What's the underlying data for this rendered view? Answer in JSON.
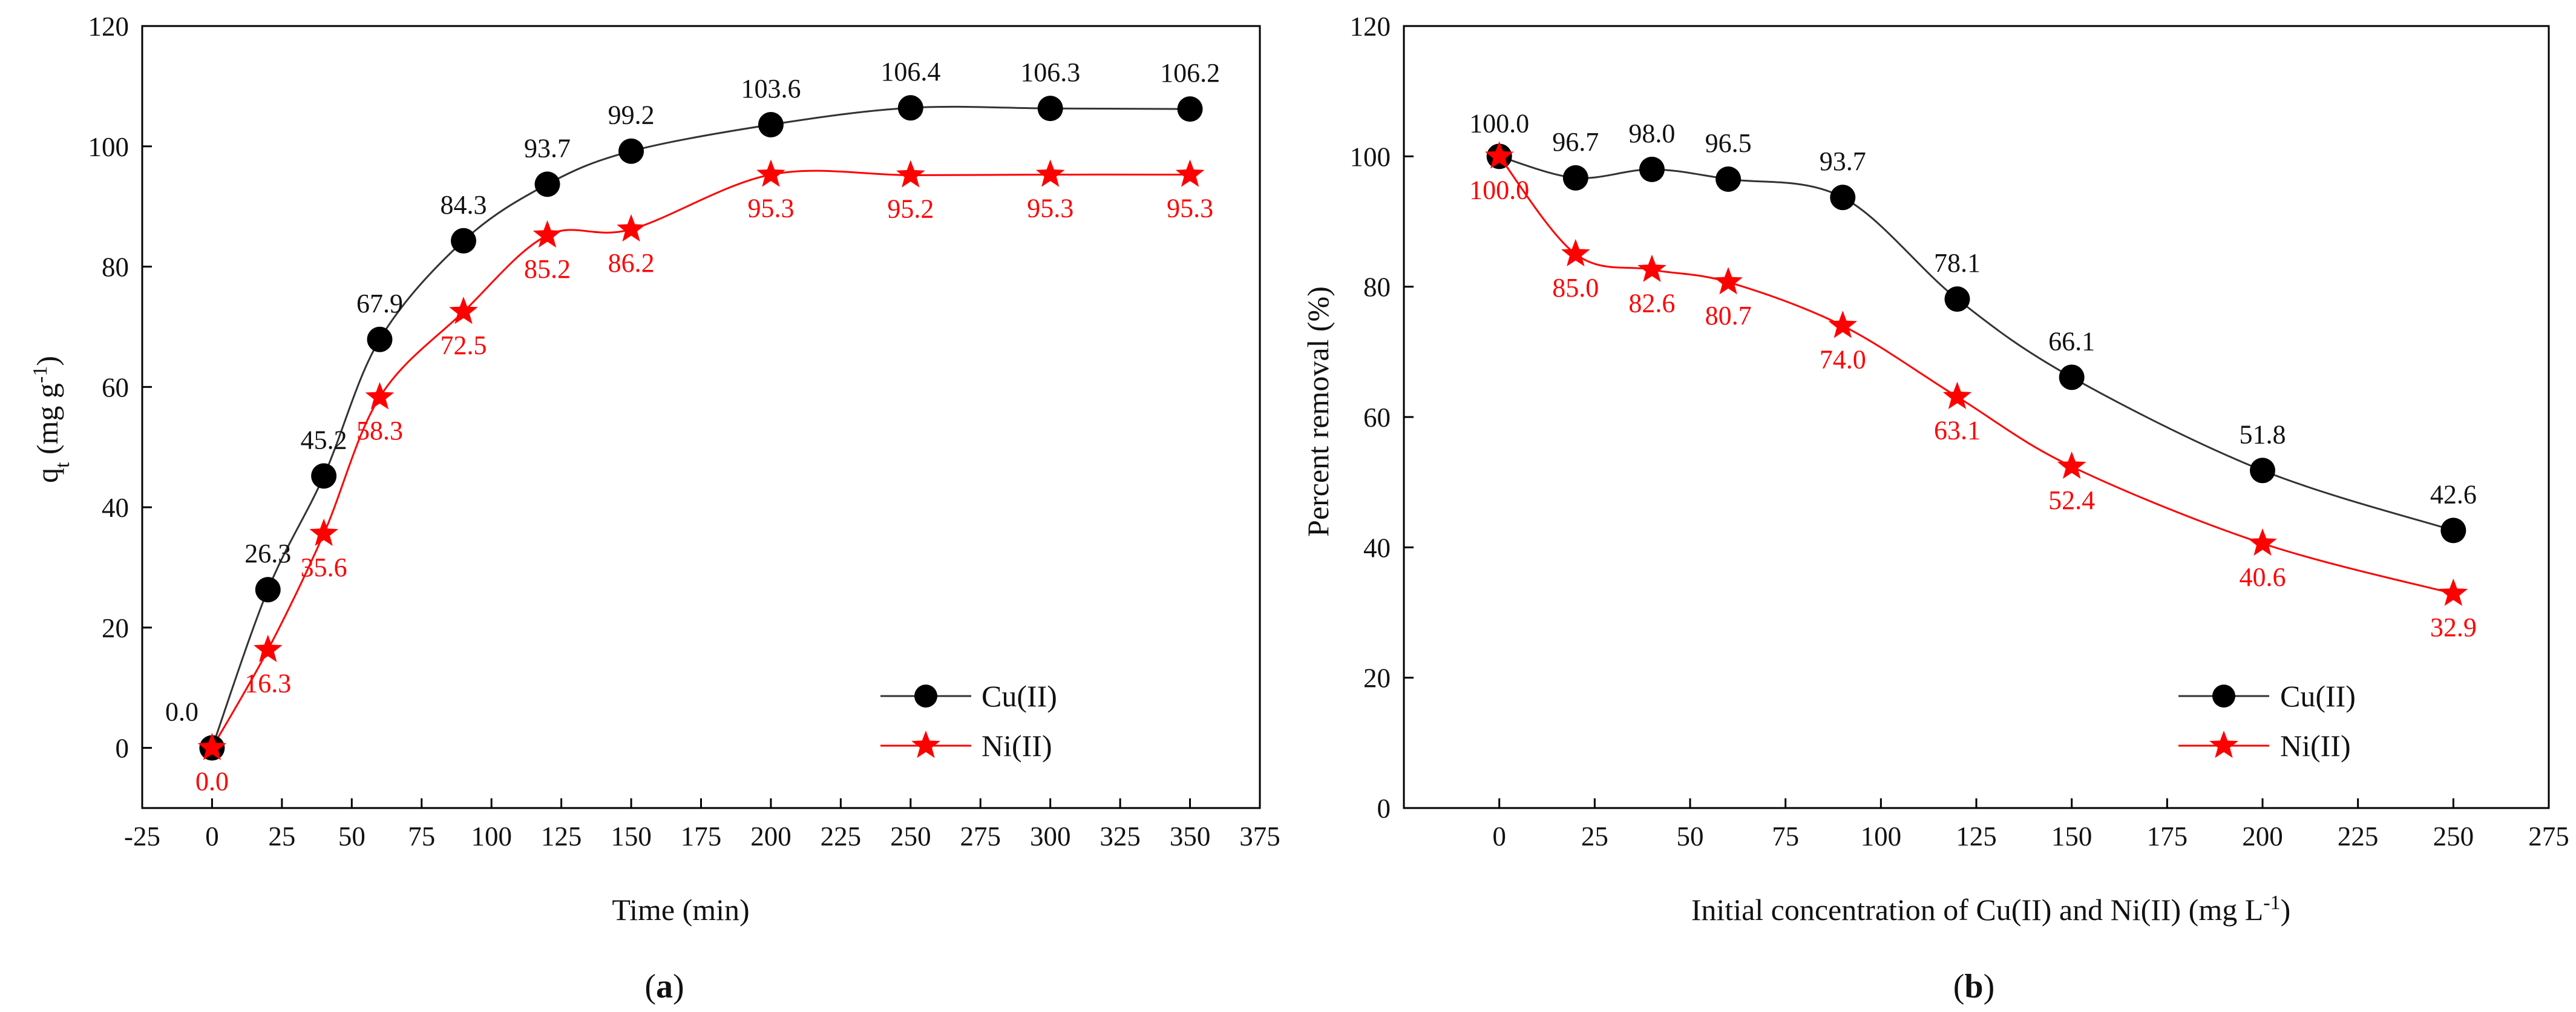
{
  "colors": {
    "cu": "#000000",
    "ni": "#ff0000",
    "axis": "#000000"
  },
  "chart_data": [
    {
      "type": "line",
      "panel_label_prefix": "(",
      "panel_label_letter": "a",
      "panel_label_suffix": ")",
      "xlabel": "Time (min)",
      "ylabel_main": "q",
      "ylabel_sub": "t",
      "ylabel_rest": " (mg g",
      "ylabel_sup": "-1",
      "ylabel_close": ")",
      "xlim": [
        -25,
        375
      ],
      "ylim": [
        -10,
        120
      ],
      "xticks": [
        "-25",
        "0",
        "25",
        "50",
        "75",
        "100",
        "125",
        "150",
        "175",
        "200",
        "225",
        "250",
        "275",
        "300",
        "325",
        "350",
        "375"
      ],
      "yticks": [
        "0",
        "20",
        "40",
        "60",
        "80",
        "100",
        "120"
      ],
      "legend_position": "bottom-right",
      "series": [
        {
          "name": "Cu(II)",
          "marker": "circle",
          "x": [
            0,
            20,
            40,
            60,
            90,
            120,
            150,
            200,
            250,
            300,
            350
          ],
          "y": [
            0.0,
            26.3,
            45.2,
            67.9,
            84.3,
            93.7,
            99.2,
            103.6,
            106.4,
            106.3,
            106.2
          ],
          "labels": [
            "0.0",
            "26.3",
            "45.2",
            "67.9",
            "84.3",
            "93.7",
            "99.2",
            "103.6",
            "106.4",
            "106.3",
            "106.2"
          ]
        },
        {
          "name": "Ni(II)",
          "marker": "star",
          "x": [
            0,
            20,
            40,
            60,
            90,
            120,
            150,
            200,
            250,
            300,
            350
          ],
          "y": [
            0.0,
            16.3,
            35.6,
            58.3,
            72.5,
            85.2,
            86.2,
            95.3,
            95.2,
            95.3,
            95.3
          ],
          "labels": [
            "0.0",
            "16.3",
            "35.6",
            "58.3",
            "72.5",
            "85.2",
            "86.2",
            "95.3",
            "95.2",
            "95.3",
            "95.3"
          ]
        }
      ]
    },
    {
      "type": "line",
      "panel_label_prefix": "(",
      "panel_label_letter": "b",
      "panel_label_suffix": ")",
      "xlabel_main": "Initial concentration of Cu(II) and Ni(II) (mg L",
      "xlabel_sup": "-1",
      "xlabel_close": ")",
      "ylabel": "Percent removal (%)",
      "xlim": [
        -25,
        275
      ],
      "ylim": [
        0,
        120
      ],
      "xticks": [
        "0",
        "25",
        "50",
        "75",
        "100",
        "125",
        "150",
        "175",
        "200",
        "225",
        "250",
        "275"
      ],
      "yticks": [
        "0",
        "20",
        "40",
        "60",
        "80",
        "100",
        "120"
      ],
      "legend_position": "bottom-right",
      "series": [
        {
          "name": "Cu(II)",
          "marker": "circle",
          "x": [
            0,
            20,
            40,
            60,
            90,
            120,
            150,
            200,
            250
          ],
          "y": [
            100.0,
            96.7,
            98.0,
            96.5,
            93.7,
            78.1,
            66.1,
            51.8,
            42.6
          ],
          "labels": [
            "100.0",
            "96.7",
            "98.0",
            "96.5",
            "93.7",
            "78.1",
            "66.1",
            "51.8",
            "42.6"
          ]
        },
        {
          "name": "Ni(II)",
          "marker": "star",
          "x": [
            0,
            20,
            40,
            60,
            90,
            120,
            150,
            200,
            250
          ],
          "y": [
            100.0,
            85.0,
            82.6,
            80.7,
            74.0,
            63.1,
            52.4,
            40.6,
            32.9
          ],
          "labels": [
            "100.0",
            "85.0",
            "82.6",
            "80.7",
            "74.0",
            "63.1",
            "52.4",
            "40.6",
            "32.9"
          ]
        }
      ]
    }
  ]
}
